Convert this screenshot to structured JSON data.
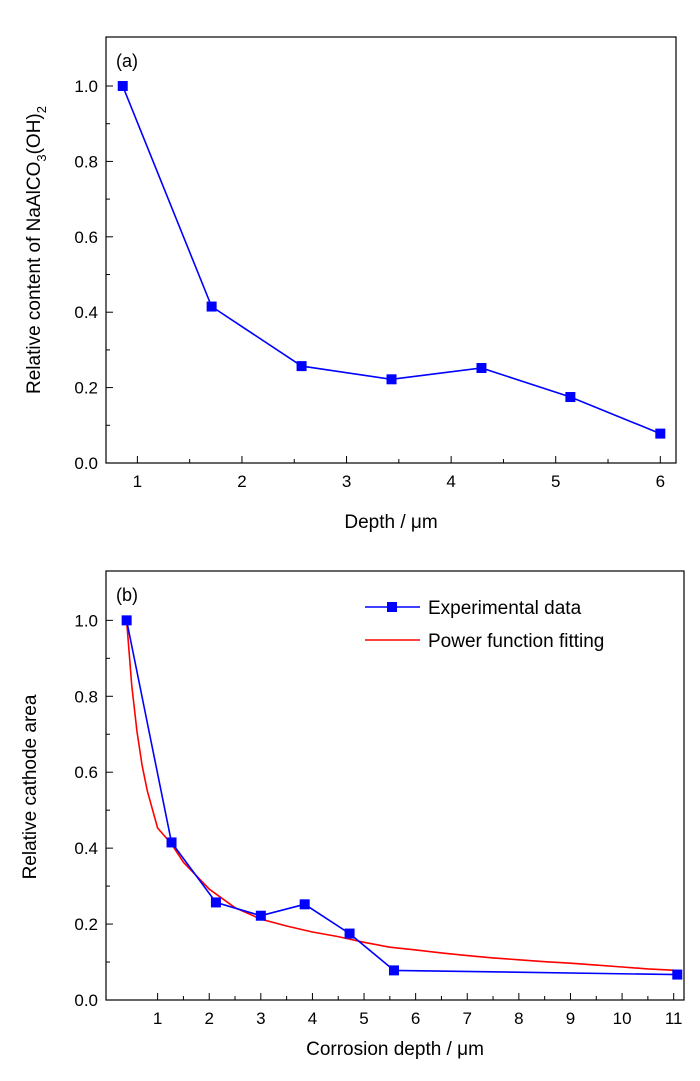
{
  "chart_data": [
    {
      "type": "line",
      "panel_label": "(a)",
      "xlabel": "Depth / μm",
      "ylabel_main": "Relative content of NaAlCO",
      "ylabel_sub1": "3",
      "ylabel_mid": "(OH)",
      "ylabel_sub2": "2",
      "xlim": [
        0.7,
        6.15
      ],
      "ylim": [
        0.0,
        1.13
      ],
      "x_ticks": [
        1,
        2,
        3,
        4,
        5,
        6
      ],
      "x_tick_labels": [
        "1",
        "2",
        "3",
        "4",
        "5",
        "6"
      ],
      "y_ticks": [
        0.0,
        0.2,
        0.4,
        0.6,
        0.8,
        1.0
      ],
      "y_tick_labels": [
        "0.0",
        "0.2",
        "0.4",
        "0.6",
        "0.8",
        "1.0"
      ],
      "grid": false,
      "series": [
        {
          "x": [
            0.86,
            1.71,
            2.57,
            3.43,
            4.29,
            5.14,
            6.0
          ],
          "y": [
            1.0,
            0.415,
            0.257,
            0.222,
            0.252,
            0.175,
            0.078
          ],
          "color": "#0000ff",
          "marker": "square"
        }
      ]
    },
    {
      "type": "line",
      "panel_label": "(b)",
      "xlabel": "Corrosion depth / μm",
      "ylabel": "Relative cathode area",
      "xlim": [
        0.0,
        11.2
      ],
      "ylim": [
        0.0,
        1.13
      ],
      "x_ticks": [
        1,
        2,
        3,
        4,
        5,
        6,
        7,
        8,
        9,
        10,
        11
      ],
      "x_tick_labels": [
        "1",
        "2",
        "3",
        "4",
        "5",
        "6",
        "7",
        "8",
        "9",
        "10",
        "11"
      ],
      "y_ticks": [
        0.0,
        0.2,
        0.4,
        0.6,
        0.8,
        1.0
      ],
      "y_tick_labels": [
        "0.0",
        "0.2",
        "0.4",
        "0.6",
        "0.8",
        "1.0"
      ],
      "grid": false,
      "legend_position": "top-right",
      "series": [
        {
          "name": "Experimental data",
          "x": [
            0.4,
            1.27,
            2.13,
            3.0,
            3.85,
            4.72,
            5.58,
            11.07
          ],
          "y": [
            1.0,
            0.415,
            0.257,
            0.222,
            0.252,
            0.175,
            0.078,
            0.067
          ],
          "color": "#0000ff",
          "marker": "square"
        },
        {
          "name": "Power function fitting",
          "x": [
            0.4,
            0.5,
            0.6,
            0.7,
            0.8,
            1.0,
            1.27,
            1.5,
            2.0,
            2.5,
            3.0,
            3.5,
            4.0,
            4.5,
            5.0,
            5.5,
            6.0,
            6.5,
            7.0,
            7.5,
            8.0,
            8.5,
            9.0,
            9.5,
            10.0,
            10.5,
            11.07
          ],
          "y": [
            1.0,
            0.827,
            0.707,
            0.618,
            0.551,
            0.453,
            0.411,
            0.363,
            0.292,
            0.243,
            0.213,
            0.195,
            0.179,
            0.167,
            0.152,
            0.139,
            0.132,
            0.124,
            0.117,
            0.111,
            0.106,
            0.101,
            0.097,
            0.092,
            0.087,
            0.082,
            0.078
          ],
          "color": "#ff0000",
          "marker": "none"
        }
      ]
    }
  ]
}
